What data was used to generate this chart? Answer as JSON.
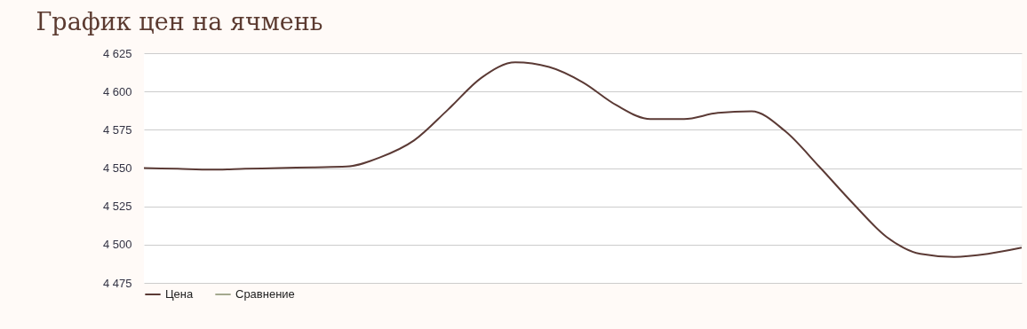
{
  "chart_data": {
    "type": "line",
    "title": "График цен на ячмень",
    "categories": [
      null,
      null,
      null,
      null,
      null,
      null,
      null,
      null,
      null,
      null,
      null,
      null,
      null,
      null,
      null,
      null,
      null,
      null,
      null,
      null,
      null,
      null,
      null,
      null,
      null,
      null,
      null
    ],
    "series": [
      {
        "name": "Цена",
        "color": "#5b3a35",
        "values": [
          4550,
          4549.5,
          4549,
          4549.5,
          4550,
          4550.5,
          4551,
          4557,
          4568,
          4588,
          4609,
          4619,
          4616,
          4606,
          4591,
          4582,
          4582,
          4586,
          4587,
          4574,
          4551,
          4527,
          4505,
          4494,
          4492,
          4494,
          4498
        ]
      },
      {
        "name": "Сравнение",
        "color": "#a4a88e",
        "values": [
          null,
          null,
          null,
          null,
          null,
          null,
          null,
          null,
          null,
          null,
          null,
          null,
          null,
          null,
          null,
          null,
          null,
          null,
          null,
          null,
          null,
          null,
          null,
          null,
          null,
          null,
          null
        ]
      }
    ],
    "ylim": [
      4475,
      4625
    ],
    "yticks": [
      {
        "value": 4475,
        "label": "4 475"
      },
      {
        "value": 4500,
        "label": "4 500"
      },
      {
        "value": 4525,
        "label": "4 525"
      },
      {
        "value": 4550,
        "label": "4 550"
      },
      {
        "value": 4575,
        "label": "4 575"
      },
      {
        "value": 4600,
        "label": "4 600"
      },
      {
        "value": 4625,
        "label": "4 625"
      }
    ],
    "grid": "y",
    "legend": "bottom",
    "marker": "none",
    "line_style": "solid"
  }
}
